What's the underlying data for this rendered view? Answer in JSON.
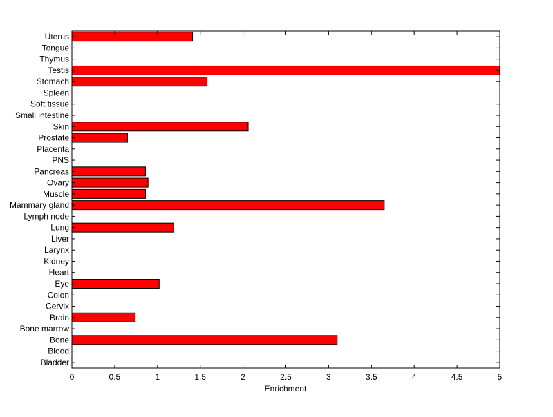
{
  "chart_data": {
    "type": "bar",
    "orientation": "horizontal",
    "categories": [
      "Uterus",
      "Tongue",
      "Thymus",
      "Testis",
      "Stomach",
      "Spleen",
      "Soft tissue",
      "Small intestine",
      "Skin",
      "Prostate",
      "Placenta",
      "PNS",
      "Pancreas",
      "Ovary",
      "Muscle",
      "Mammary gland",
      "Lymph node",
      "Lung",
      "Liver",
      "Larynx",
      "Kidney",
      "Heart",
      "Eye",
      "Colon",
      "Cervix",
      "Brain",
      "Bone marrow",
      "Bone",
      "Blood",
      "Bladder"
    ],
    "values": [
      1.41,
      0,
      0,
      5.0,
      1.58,
      0,
      0,
      0,
      2.06,
      0.65,
      0,
      0,
      0.86,
      0.89,
      0.86,
      3.65,
      0,
      1.19,
      0,
      0,
      0,
      0,
      1.02,
      0,
      0,
      0.74,
      0,
      3.1,
      0,
      0
    ],
    "xlabel": "Enrichment",
    "ylabel": "",
    "xlim": [
      0,
      5
    ],
    "xticks": [
      0,
      0.5,
      1,
      1.5,
      2,
      2.5,
      3,
      3.5,
      4,
      4.5,
      5
    ],
    "xtick_labels": [
      "0",
      "0.5",
      "1",
      "1.5",
      "2",
      "2.5",
      "3",
      "3.5",
      "4",
      "4.5",
      "5"
    ],
    "grid": false,
    "bar_color": "#ff0000",
    "edge_color": "#000000"
  }
}
